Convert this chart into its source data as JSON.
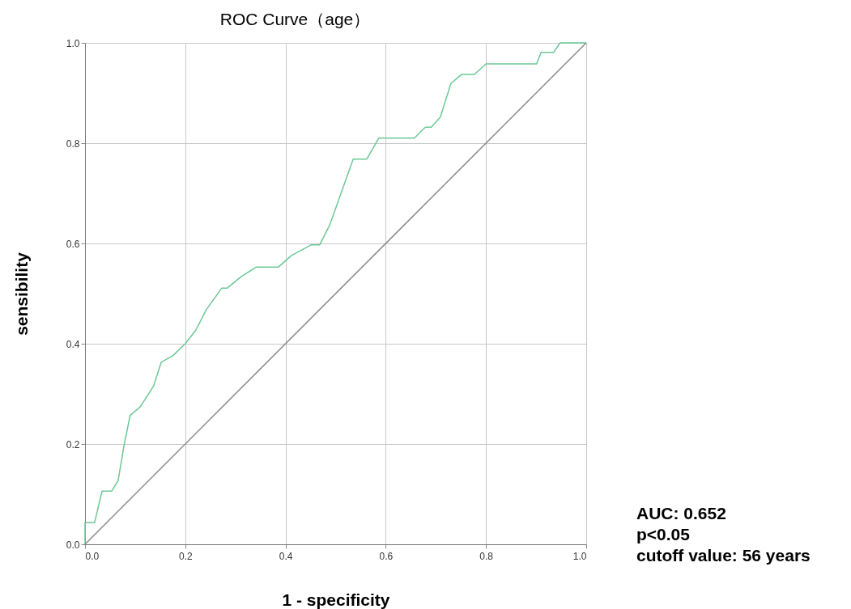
{
  "chart_data": {
    "type": "line",
    "title": "ROC Curve（age）",
    "xlabel": "1 - specificity",
    "ylabel": "sensibility",
    "xlim": [
      0,
      1
    ],
    "ylim": [
      0,
      1
    ],
    "xticks": [
      {
        "value": 0,
        "label": "0.0"
      },
      {
        "value": 0.2,
        "label": "0.2"
      },
      {
        "value": 0.4,
        "label": "0.4"
      },
      {
        "value": 0.6,
        "label": "0.6"
      },
      {
        "value": 0.8,
        "label": "0.8"
      },
      {
        "value": 1,
        "label": "1.0"
      }
    ],
    "yticks": [
      {
        "value": 0,
        "label": "0.0"
      },
      {
        "value": 0.2,
        "label": "0.2"
      },
      {
        "value": 0.4,
        "label": "0.4"
      },
      {
        "value": 0.6,
        "label": "0.6"
      },
      {
        "value": 0.8,
        "label": "0.8"
      },
      {
        "value": 1,
        "label": "1.0"
      }
    ],
    "grid": true,
    "line_style": "solid",
    "series": [
      {
        "color": "#6cc897",
        "x": [
          0,
          0,
          0.019,
          0.034,
          0.053,
          0.066,
          0.078,
          0.09,
          0.11,
          0.137,
          0.152,
          0.175,
          0.2,
          0.221,
          0.242,
          0.273,
          0.284,
          0.312,
          0.342,
          0.386,
          0.412,
          0.451,
          0.468,
          0.488,
          0.535,
          0.562,
          0.586,
          0.657,
          0.679,
          0.691,
          0.709,
          0.73,
          0.751,
          0.777,
          0.8,
          0.901,
          0.91,
          0.935,
          0.948,
          1
        ],
        "values": [
          0,
          0.043,
          0.043,
          0.106,
          0.106,
          0.127,
          0.198,
          0.257,
          0.274,
          0.316,
          0.363,
          0.376,
          0.4,
          0.427,
          0.468,
          0.511,
          0.511,
          0.534,
          0.553,
          0.553,
          0.576,
          0.597,
          0.597,
          0.636,
          0.768,
          0.768,
          0.81,
          0.81,
          0.832,
          0.832,
          0.852,
          0.919,
          0.937,
          0.937,
          0.958,
          0.958,
          0.981,
          0.981,
          1,
          1
        ]
      },
      {
        "color": "#8a8a8a",
        "x": [
          0,
          1
        ],
        "values": [
          0,
          1
        ]
      }
    ],
    "annotations": [
      "AUC: 0.652",
      "p<0.05",
      "cutoff value: 56 years"
    ]
  }
}
